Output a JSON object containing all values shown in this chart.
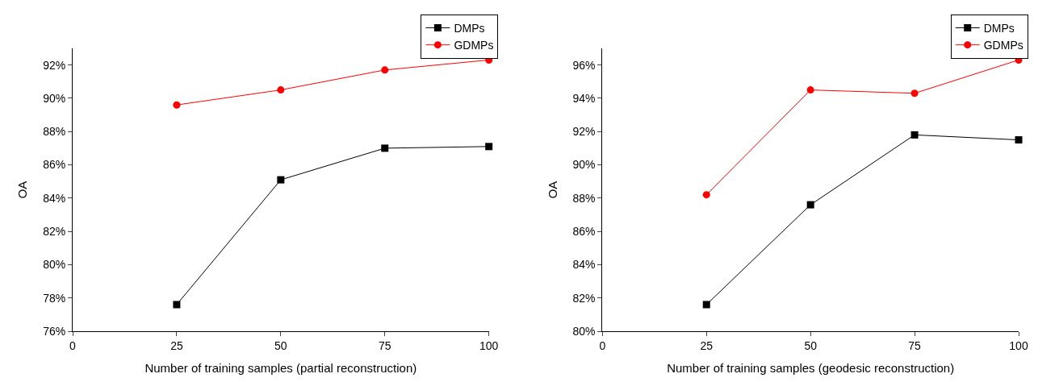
{
  "chart_data": [
    {
      "type": "line",
      "xlabel": "Number of training samples (partial reconstruction)",
      "ylabel": "OA",
      "x": [
        25,
        50,
        75,
        100
      ],
      "xlim": [
        0,
        100
      ],
      "xticks": [
        0,
        25,
        50,
        75,
        100
      ],
      "ylim": [
        76,
        93
      ],
      "yticks": [
        {
          "value": 76,
          "label": "76%"
        },
        {
          "value": 78,
          "label": "78%"
        },
        {
          "value": 80,
          "label": "80%"
        },
        {
          "value": 82,
          "label": "82%"
        },
        {
          "value": 84,
          "label": "84%"
        },
        {
          "value": 86,
          "label": "86%"
        },
        {
          "value": 88,
          "label": "88%"
        },
        {
          "value": 90,
          "label": "90%"
        },
        {
          "value": 92,
          "label": "92%"
        }
      ],
      "legend": "top right",
      "series": [
        {
          "name": "DMPs",
          "color": "#000000",
          "marker": "square",
          "values": [
            77.6,
            85.1,
            87.0,
            87.1
          ]
        },
        {
          "name": "GDMPs",
          "color": "#ff0000",
          "marker": "circle",
          "values": [
            89.6,
            90.5,
            91.7,
            92.3
          ]
        }
      ]
    },
    {
      "type": "line",
      "xlabel": "Number of training samples (geodesic reconstruction)",
      "ylabel": "OA",
      "x": [
        25,
        50,
        75,
        100
      ],
      "xlim": [
        0,
        100
      ],
      "xticks": [
        0,
        25,
        50,
        75,
        100
      ],
      "ylim": [
        80,
        97
      ],
      "yticks": [
        {
          "value": 80,
          "label": "80%"
        },
        {
          "value": 82,
          "label": "82%"
        },
        {
          "value": 84,
          "label": "84%"
        },
        {
          "value": 86,
          "label": "86%"
        },
        {
          "value": 88,
          "label": "88%"
        },
        {
          "value": 90,
          "label": "90%"
        },
        {
          "value": 92,
          "label": "92%"
        },
        {
          "value": 94,
          "label": "94%"
        },
        {
          "value": 96,
          "label": "96%"
        }
      ],
      "legend": "top right",
      "series": [
        {
          "name": "DMPs",
          "color": "#000000",
          "marker": "square",
          "values": [
            81.6,
            87.6,
            91.8,
            91.5
          ]
        },
        {
          "name": "GDMPs",
          "color": "#ff0000",
          "marker": "circle",
          "values": [
            88.2,
            94.5,
            94.3,
            96.3
          ]
        }
      ]
    }
  ]
}
